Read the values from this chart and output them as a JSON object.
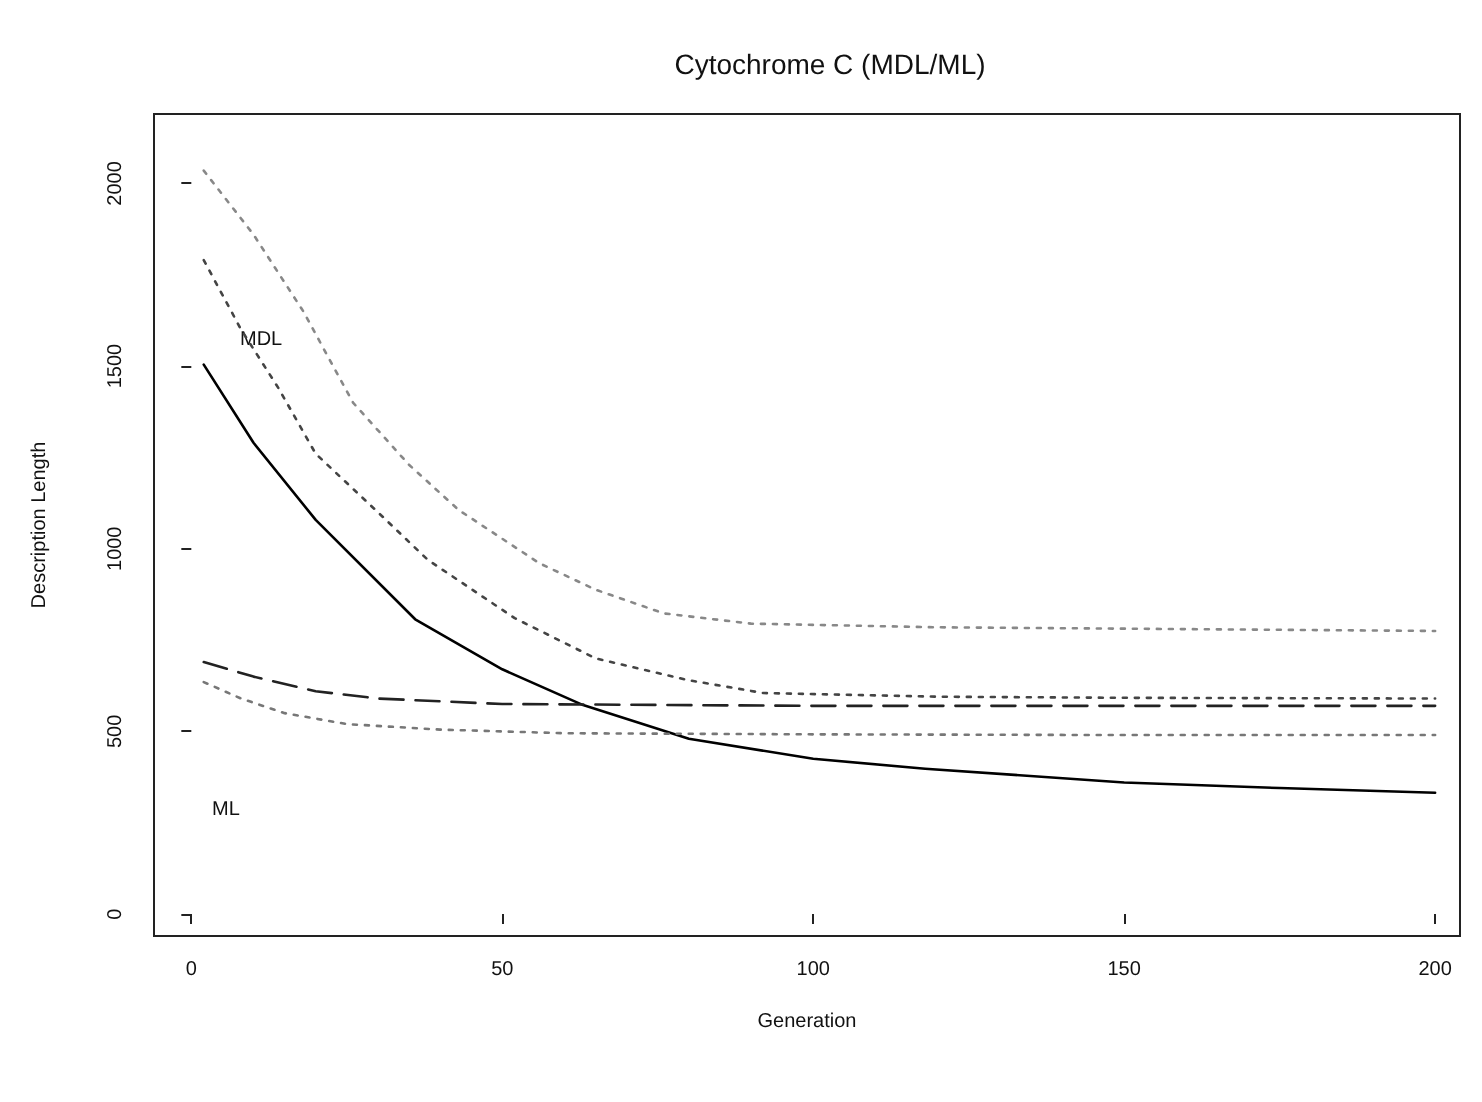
{
  "chart_data": {
    "type": "line",
    "title": "Cytochrome C (MDL/ML)",
    "xlabel": "Generation",
    "ylabel": "Description Length",
    "xlim": [
      -6,
      204
    ],
    "xticks": [
      0,
      50,
      100,
      150,
      200
    ],
    "ylim": [
      -60,
      2190
    ],
    "yticks": [
      0,
      500,
      1000,
      1500,
      2000
    ],
    "grid": false,
    "marker": "none",
    "annotations": [
      "MDL",
      "ML"
    ],
    "series": [
      {
        "color": "#888888",
        "line_style": "dotted",
        "x": [
          2,
          10,
          18,
          26,
          35,
          43,
          56,
          65,
          76,
          90,
          120,
          160,
          200
        ],
        "values": [
          2035,
          1860,
          1650,
          1400,
          1230,
          1106,
          960,
          888,
          823,
          795,
          785,
          780,
          775
        ]
      },
      {
        "color": "#444444",
        "line_style": "dotted",
        "x": [
          2,
          8,
          14,
          20,
          30,
          38,
          52,
          65,
          80,
          92,
          120,
          150,
          200
        ],
        "values": [
          1790,
          1600,
          1440,
          1260,
          1100,
          970,
          810,
          700,
          640,
          605,
          595,
          592,
          590
        ]
      },
      {
        "color": "#000000",
        "line_style": "solid",
        "x": [
          2,
          10,
          20,
          36,
          50,
          63,
          80,
          100,
          118,
          150,
          175,
          200
        ],
        "values": [
          1504,
          1290,
          1079,
          807,
          670,
          572,
          480,
          425,
          398,
          360,
          345,
          332
        ]
      },
      {
        "color": "#222222",
        "line_style": "dashed",
        "x": [
          2,
          10,
          20,
          30,
          50,
          100,
          200
        ],
        "values": [
          690,
          650,
          610,
          590,
          575,
          570,
          570
        ]
      },
      {
        "color": "#777777",
        "line_style": "dotted",
        "x": [
          2,
          8,
          15,
          25,
          40,
          60,
          100,
          150,
          200
        ],
        "values": [
          635,
          590,
          550,
          520,
          505,
          495,
          492,
          490,
          490
        ]
      }
    ]
  }
}
